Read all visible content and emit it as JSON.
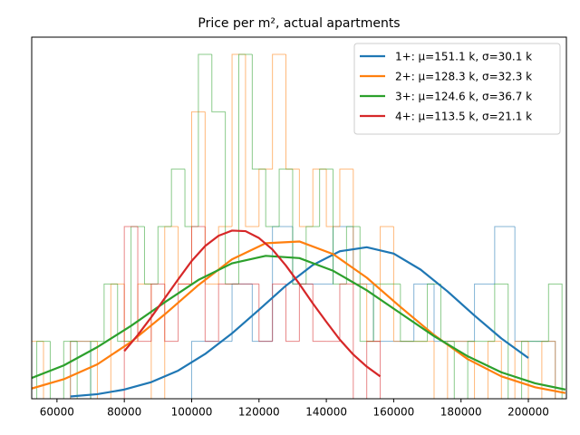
{
  "chart_data": {
    "type": "histogram",
    "title": "Price per m², actual apartments",
    "xlim": [
      52500,
      211300
    ],
    "xticks": [
      60000,
      80000,
      100000,
      120000,
      140000,
      160000,
      180000,
      200000
    ],
    "ylim": [
      0,
      6.3
    ],
    "legend": "upper right",
    "series": [
      {
        "name": "1+: μ=151.1 k, σ=30.1 k",
        "color": "#1f77b4",
        "bins": [
          64000,
          70000,
          76000,
          82000,
          88000,
          94000,
          100000,
          106000,
          112000,
          118000,
          124000,
          130000,
          136000,
          142000,
          148000,
          154000,
          160000,
          166000,
          172000,
          178000,
          184000,
          190000,
          196000,
          202000,
          208000
        ],
        "values": [
          1,
          0,
          0,
          0,
          0,
          0,
          1,
          1,
          2,
          1,
          3,
          2,
          2,
          3,
          2,
          1,
          1,
          2,
          1,
          1,
          2,
          3,
          1,
          1
        ],
        "curve": {
          "x": [
            64000,
            72000,
            80000,
            88000,
            96000,
            104000,
            112000,
            120000,
            128000,
            136000,
            144000,
            152000,
            160000,
            168000,
            176000,
            184000,
            192000,
            200000
          ],
          "values": [
            0.04,
            0.08,
            0.16,
            0.29,
            0.49,
            0.78,
            1.14,
            1.55,
            1.97,
            2.33,
            2.57,
            2.64,
            2.53,
            2.25,
            1.87,
            1.45,
            1.05,
            0.71
          ]
        }
      },
      {
        "name": "2+: μ=128.3 k, σ=32.3 k",
        "color": "#ff7f0e",
        "bins": [
          52000,
          56000,
          60000,
          64000,
          68000,
          72000,
          76000,
          80000,
          84000,
          88000,
          92000,
          96000,
          100000,
          104000,
          108000,
          112000,
          116000,
          120000,
          124000,
          128000,
          132000,
          136000,
          140000,
          144000,
          148000,
          152000,
          156000,
          160000,
          164000,
          168000,
          172000,
          176000,
          180000,
          184000,
          188000,
          192000,
          196000,
          200000,
          204000,
          208000
        ],
        "values": [
          1,
          0,
          0,
          1,
          1,
          0,
          2,
          1,
          2,
          0,
          3,
          2,
          5,
          2,
          3,
          6,
          3,
          4,
          6,
          4,
          3,
          4,
          3,
          4,
          2,
          1,
          3,
          1,
          1,
          1,
          0,
          1,
          1,
          0,
          1,
          0,
          1,
          0,
          1
        ],
        "curve": {
          "x": [
            52000,
            62000,
            72000,
            82000,
            92000,
            102000,
            112000,
            122000,
            132000,
            142000,
            152000,
            162000,
            172000,
            182000,
            192000,
            202000,
            211000
          ],
          "values": [
            0.17,
            0.34,
            0.6,
            0.99,
            1.47,
            1.98,
            2.43,
            2.71,
            2.74,
            2.52,
            2.11,
            1.6,
            1.11,
            0.69,
            0.39,
            0.2,
            0.1
          ]
        }
      },
      {
        "name": "3+: μ=124.6 k, σ=36.7 k",
        "color": "#2ca02c",
        "bins": [
          54000,
          58000,
          62000,
          66000,
          70000,
          74000,
          78000,
          82000,
          86000,
          90000,
          94000,
          98000,
          102000,
          106000,
          110000,
          114000,
          118000,
          122000,
          126000,
          130000,
          134000,
          138000,
          142000,
          146000,
          150000,
          154000,
          158000,
          162000,
          166000,
          170000,
          174000,
          178000,
          182000,
          186000,
          190000,
          194000,
          198000,
          202000,
          206000,
          210000
        ],
        "values": [
          1,
          0,
          1,
          0,
          1,
          2,
          1,
          3,
          2,
          3,
          4,
          3,
          6,
          5,
          2,
          6,
          4,
          3,
          4,
          2,
          3,
          4,
          2,
          3,
          1,
          2,
          2,
          1,
          1,
          2,
          1,
          0,
          1,
          1,
          2,
          0,
          1,
          1,
          2
        ],
        "curve": {
          "x": [
            52000,
            62000,
            72000,
            82000,
            92000,
            102000,
            112000,
            122000,
            132000,
            142000,
            152000,
            162000,
            172000,
            182000,
            192000,
            202000,
            211000
          ],
          "values": [
            0.35,
            0.58,
            0.9,
            1.27,
            1.68,
            2.07,
            2.36,
            2.49,
            2.45,
            2.23,
            1.89,
            1.49,
            1.09,
            0.74,
            0.46,
            0.27,
            0.16
          ]
        }
      },
      {
        "name": "4+: μ=113.5 k, σ=21.1 k",
        "color": "#d62728",
        "bins": [
          80000,
          84000,
          88000,
          92000,
          96000,
          100000,
          104000,
          108000,
          112000,
          116000,
          120000,
          124000,
          128000,
          132000,
          136000,
          140000,
          144000,
          148000,
          152000,
          156000
        ],
        "values": [
          3,
          1,
          2,
          1,
          2,
          3,
          1,
          2,
          2,
          2,
          1,
          2,
          1,
          2,
          1,
          1,
          2,
          0,
          1
        ],
        "curve": {
          "x": [
            80000,
            84000,
            88000,
            92000,
            96000,
            100000,
            104000,
            108000,
            112000,
            116000,
            120000,
            124000,
            128000,
            132000,
            136000,
            140000,
            144000,
            148000,
            152000,
            156000
          ],
          "values": [
            0.83,
            1.11,
            1.42,
            1.75,
            2.08,
            2.4,
            2.66,
            2.84,
            2.93,
            2.92,
            2.8,
            2.6,
            2.32,
            2.0,
            1.66,
            1.34,
            1.03,
            0.77,
            0.56,
            0.39
          ]
        }
      }
    ]
  }
}
